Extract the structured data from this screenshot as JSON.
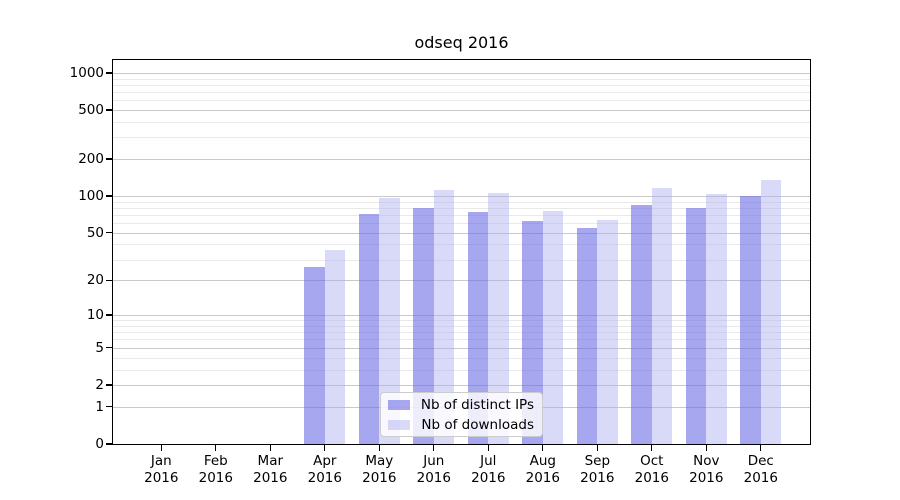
{
  "title": "odseq 2016",
  "chart_data": {
    "type": "bar",
    "title": "odseq 2016",
    "categories": [
      "Jan",
      "Feb",
      "Mar",
      "Apr",
      "May",
      "Jun",
      "Jul",
      "Aug",
      "Sep",
      "Oct",
      "Nov",
      "Dec"
    ],
    "category_year": "2016",
    "series": [
      {
        "name": "Nb of distinct IPs",
        "color_flat": "#A6A6F0",
        "color_rgba": "rgba(108,108,230,0.6)",
        "values": [
          0,
          0,
          0,
          26,
          72,
          80,
          74,
          63,
          55,
          84,
          80,
          101
        ]
      },
      {
        "name": "Nb of downloads",
        "color_flat": "#D9D9F8",
        "color_rgba": "rgba(170,170,240,0.45)",
        "values": [
          0,
          0,
          0,
          36,
          96,
          113,
          105,
          76,
          64,
          116,
          103,
          134
        ]
      }
    ],
    "xlabel": "",
    "ylabel": "",
    "y_scale": "log1p",
    "y_ticks": [
      0,
      1,
      2,
      5,
      10,
      20,
      50,
      100,
      200,
      500,
      1000
    ],
    "y_minor_ticks": [
      3,
      4,
      6,
      7,
      8,
      9,
      30,
      40,
      60,
      70,
      80,
      90,
      300,
      400,
      600,
      700,
      800,
      900
    ],
    "ylim": [
      0,
      1270
    ],
    "grid": true,
    "legend_position": "lower center",
    "spine_color": "#000000",
    "major_grid_color": "#c9c9c9",
    "minor_grid_color": "#e9e9e9"
  }
}
